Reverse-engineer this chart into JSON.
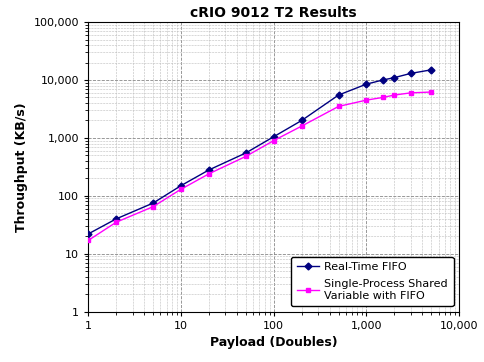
{
  "title": "cRIO 9012 T2 Results",
  "xlabel": "Payload (Doubles)",
  "ylabel": "Throughput (KB/s)",
  "rt_fifo_x": [
    1,
    2,
    5,
    10,
    20,
    50,
    100,
    200,
    500,
    1000,
    1500,
    2000,
    3000,
    5000
  ],
  "rt_fifo_y": [
    22,
    40,
    75,
    150,
    280,
    550,
    1050,
    2000,
    5500,
    8500,
    10000,
    11000,
    13000,
    15000
  ],
  "sp_sv_x": [
    1,
    2,
    5,
    10,
    20,
    50,
    100,
    200,
    500,
    1000,
    1500,
    2000,
    3000,
    5000
  ],
  "sp_sv_y": [
    17,
    35,
    65,
    130,
    240,
    480,
    900,
    1600,
    3500,
    4500,
    5000,
    5500,
    6000,
    6200
  ],
  "rt_fifo_color": "#000080",
  "sp_sv_color": "#FF00FF",
  "rt_fifo_label": "Real-Time FIFO",
  "sp_sv_label": "Single-Process Shared\nVariable with FIFO",
  "xlim": [
    1,
    10000
  ],
  "ylim": [
    1,
    100000
  ],
  "background_color": "#FFFFFF",
  "grid_major_color": "#888888",
  "grid_minor_color": "#BBBBBB",
  "title_fontsize": 10,
  "axis_label_fontsize": 9,
  "tick_label_fontsize": 8,
  "legend_fontsize": 8
}
